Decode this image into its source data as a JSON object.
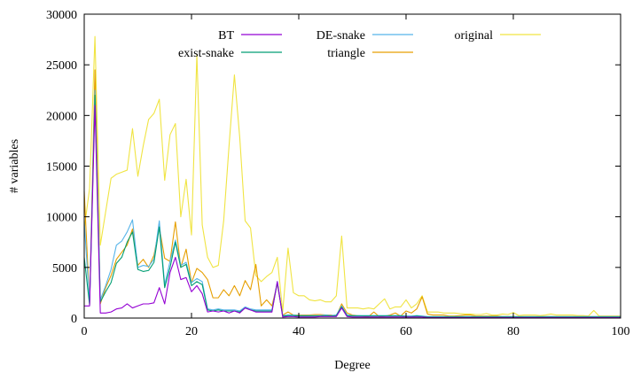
{
  "chart_data": {
    "type": "line",
    "title": "",
    "xlabel": "Degree",
    "ylabel": "# variables",
    "xlim": [
      0,
      100
    ],
    "ylim": [
      0,
      30000
    ],
    "xticks": [
      0,
      20,
      40,
      60,
      80,
      100
    ],
    "yticks": [
      0,
      5000,
      10000,
      15000,
      20000,
      25000,
      30000
    ],
    "xtick_labels": [
      "0",
      "20",
      "40",
      "60",
      "80",
      "100"
    ],
    "ytick_labels": [
      "0",
      "5000",
      "10000",
      "15000",
      "20000",
      "25000",
      "30000"
    ],
    "grid": false,
    "legend_placement": "top",
    "x": [
      0,
      1,
      2,
      3,
      4,
      5,
      6,
      7,
      8,
      9,
      10,
      11,
      12,
      13,
      14,
      15,
      16,
      17,
      18,
      19,
      20,
      21,
      22,
      23,
      24,
      25,
      26,
      27,
      28,
      29,
      30,
      31,
      32,
      33,
      34,
      35,
      36,
      37,
      38,
      39,
      40,
      41,
      42,
      43,
      44,
      45,
      46,
      47,
      48,
      49,
      50,
      51,
      52,
      53,
      54,
      55,
      56,
      57,
      58,
      59,
      60,
      61,
      62,
      63,
      64,
      65,
      66,
      67,
      68,
      69,
      70,
      71,
      72,
      73,
      74,
      75,
      76,
      77,
      78,
      79,
      80,
      81,
      82,
      83,
      84,
      85,
      86,
      87,
      88,
      89,
      90,
      91,
      92,
      93,
      94,
      95,
      96,
      97,
      98,
      99,
      100
    ],
    "series": [
      {
        "name": "BT",
        "color": "#9400d3",
        "values": [
          1200,
          1200,
          21000,
          500,
          500,
          600,
          900,
          1000,
          1400,
          1000,
          1200,
          1400,
          1400,
          1500,
          3000,
          1400,
          4500,
          6000,
          3800,
          4000,
          2600,
          3200,
          2400,
          600,
          700,
          600,
          700,
          500,
          700,
          500,
          1000,
          800,
          600,
          600,
          600,
          600,
          3600,
          100,
          150,
          150,
          100,
          100,
          100,
          100,
          150,
          150,
          150,
          150,
          1000,
          150,
          100,
          100,
          100,
          100,
          100,
          100,
          100,
          100,
          100,
          100,
          100,
          100,
          100,
          100,
          50,
          50,
          50,
          50,
          50,
          50,
          50,
          50,
          50,
          50,
          50,
          50,
          50,
          50,
          50,
          50,
          50,
          50,
          50,
          50,
          50,
          50,
          50,
          50,
          50,
          50,
          50,
          50,
          50,
          50,
          50,
          50,
          50,
          50,
          50,
          50,
          50
        ]
      },
      {
        "name": "exist-snake",
        "color": "#009e73",
        "values": [
          6000,
          1300,
          22000,
          1600,
          2600,
          3500,
          5400,
          6000,
          7500,
          8500,
          4800,
          4600,
          4700,
          5500,
          9000,
          3000,
          5000,
          7500,
          5000,
          5300,
          3200,
          3600,
          3300,
          800,
          700,
          800,
          700,
          700,
          700,
          600,
          1000,
          800,
          700,
          700,
          700,
          700,
          3500,
          200,
          250,
          250,
          200,
          200,
          200,
          200,
          200,
          250,
          200,
          250,
          1100,
          250,
          200,
          200,
          200,
          200,
          200,
          200,
          200,
          200,
          200,
          200,
          150,
          150,
          200,
          150,
          100,
          100,
          100,
          100,
          100,
          100,
          100,
          100,
          100,
          100,
          100,
          100,
          100,
          100,
          100,
          100,
          100,
          100,
          100,
          100,
          100,
          100,
          100,
          100,
          100,
          100,
          100,
          100,
          100,
          100,
          100,
          100,
          100,
          100,
          100,
          100,
          100
        ]
      },
      {
        "name": "DE-snake",
        "color": "#56b4e9",
        "values": [
          9500,
          1500,
          22500,
          1800,
          3200,
          4800,
          7200,
          7600,
          8500,
          9700,
          5000,
          5200,
          5100,
          5800,
          9600,
          3300,
          5600,
          7700,
          5200,
          5500,
          3500,
          3900,
          3600,
          900,
          800,
          900,
          800,
          800,
          800,
          700,
          1100,
          900,
          800,
          800,
          800,
          800,
          3600,
          250,
          300,
          300,
          250,
          250,
          250,
          250,
          250,
          300,
          250,
          300,
          1200,
          300,
          250,
          250,
          250,
          250,
          250,
          250,
          250,
          250,
          250,
          250,
          200,
          200,
          250,
          200,
          150,
          150,
          150,
          150,
          150,
          150,
          150,
          150,
          150,
          150,
          150,
          150,
          150,
          150,
          150,
          150,
          150,
          150,
          150,
          150,
          150,
          150,
          150,
          150,
          150,
          150,
          150,
          150,
          150,
          150,
          150,
          150,
          150,
          150,
          150,
          150,
          150
        ]
      },
      {
        "name": "triangle",
        "color": "#e69f00",
        "values": [
          12500,
          1400,
          24500,
          1400,
          3000,
          4200,
          5800,
          6500,
          7200,
          8800,
          5200,
          5800,
          5000,
          6200,
          9000,
          5900,
          5600,
          9500,
          5000,
          6800,
          3500,
          4900,
          4500,
          3800,
          2000,
          2000,
          2800,
          2200,
          3200,
          2200,
          3700,
          2800,
          5300,
          1200,
          1800,
          1200,
          3400,
          300,
          600,
          300,
          300,
          300,
          300,
          350,
          350,
          300,
          300,
          200,
          1400,
          500,
          300,
          250,
          200,
          150,
          600,
          150,
          200,
          300,
          500,
          200,
          700,
          500,
          900,
          2100,
          400,
          300,
          300,
          300,
          200,
          200,
          250,
          300,
          300,
          200,
          200,
          200,
          200,
          200,
          150,
          150,
          150,
          150,
          150,
          150,
          150,
          150,
          150,
          150,
          150,
          150,
          150,
          150,
          150,
          150,
          150,
          150,
          150,
          150,
          150,
          150,
          150
        ]
      },
      {
        "name": "original",
        "color": "#f0e442",
        "values": [
          8800,
          12800,
          27800,
          7200,
          10500,
          13800,
          14200,
          14400,
          14600,
          18700,
          14000,
          17000,
          19600,
          20200,
          21600,
          13600,
          18100,
          19200,
          10000,
          13700,
          8200,
          26000,
          9200,
          6000,
          5000,
          5200,
          9600,
          17000,
          24000,
          17800,
          9600,
          8900,
          4200,
          3600,
          4100,
          4500,
          6000,
          600,
          6900,
          2500,
          2200,
          2200,
          1800,
          1700,
          1800,
          1600,
          1600,
          2200,
          8100,
          1000,
          1000,
          1000,
          900,
          1000,
          900,
          1400,
          1900,
          900,
          1100,
          1100,
          1800,
          1000,
          1400,
          2200,
          600,
          600,
          600,
          500,
          500,
          500,
          450,
          400,
          400,
          350,
          350,
          450,
          300,
          300,
          400,
          350,
          550,
          250,
          300,
          300,
          300,
          250,
          300,
          400,
          300,
          300,
          300,
          300,
          250,
          250,
          200,
          750,
          200,
          200,
          200,
          200,
          200
        ]
      }
    ],
    "legend": [
      {
        "name": "BT",
        "color": "#9400d3"
      },
      {
        "name": "DE-snake",
        "color": "#56b4e9"
      },
      {
        "name": "original",
        "color": "#f0e442"
      },
      {
        "name": "exist-snake",
        "color": "#009e73"
      },
      {
        "name": "triangle",
        "color": "#e69f00"
      }
    ]
  }
}
